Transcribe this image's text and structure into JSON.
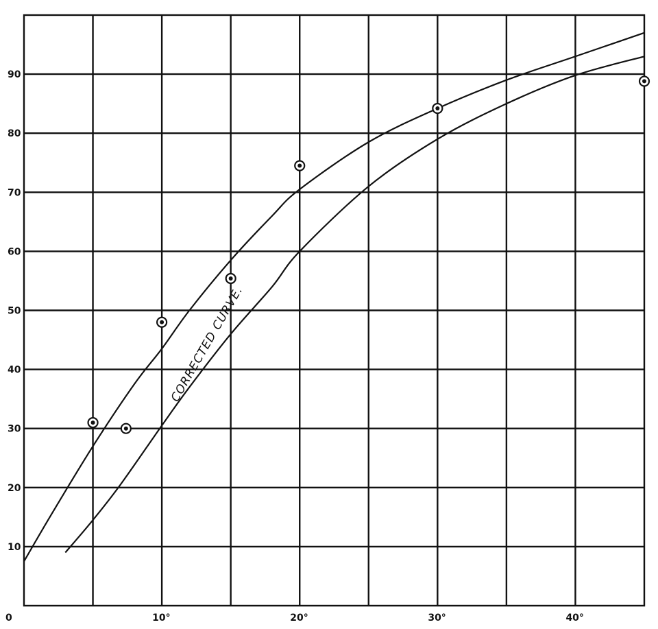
{
  "chart_data": {
    "type": "line",
    "title": "",
    "xlabel": "",
    "ylabel": "",
    "xlim": [
      0,
      45
    ],
    "ylim": [
      0,
      100
    ],
    "grid": true,
    "x_tick_labels": [
      {
        "value": 0,
        "label": "0"
      },
      {
        "value": 10,
        "label": "10°"
      },
      {
        "value": 20,
        "label": "20°"
      },
      {
        "value": 30,
        "label": "30°"
      },
      {
        "value": 40,
        "label": "40°"
      }
    ],
    "y_tick_labels": [
      {
        "value": 10,
        "label": "10"
      },
      {
        "value": 20,
        "label": "20"
      },
      {
        "value": 30,
        "label": "30"
      },
      {
        "value": 40,
        "label": "40"
      },
      {
        "value": 50,
        "label": "50"
      },
      {
        "value": 60,
        "label": "60"
      },
      {
        "value": 70,
        "label": "70"
      },
      {
        "value": 80,
        "label": "80"
      },
      {
        "value": 90,
        "label": "90"
      }
    ],
    "series": [
      {
        "kind": "points",
        "x": [
          5,
          7.4,
          10,
          15,
          20,
          30,
          45
        ],
        "y": [
          31,
          30,
          48,
          55.4,
          74.5,
          84.2,
          88.8
        ]
      },
      {
        "kind": "curve",
        "x": [
          0,
          2,
          5,
          8,
          10,
          12,
          15,
          18,
          20,
          25,
          30,
          35,
          40,
          45
        ],
        "y": [
          7.5,
          15.5,
          27,
          37.5,
          43.5,
          50,
          58.5,
          66,
          70.5,
          78.5,
          84.2,
          89,
          93,
          97
        ]
      },
      {
        "kind": "curve",
        "name": "CORRECTED CURVE.",
        "x": [
          3,
          5,
          7,
          10,
          12,
          15,
          18,
          20,
          25,
          30,
          35,
          40,
          45
        ],
        "y": [
          9,
          14.5,
          20.5,
          30.5,
          37,
          46,
          54,
          60,
          71,
          79,
          85,
          89.8,
          93
        ]
      }
    ],
    "annotations": [
      {
        "text": "CORRECTED CURVE.",
        "x": 13.5,
        "y": 44,
        "rotation": -60
      }
    ]
  }
}
